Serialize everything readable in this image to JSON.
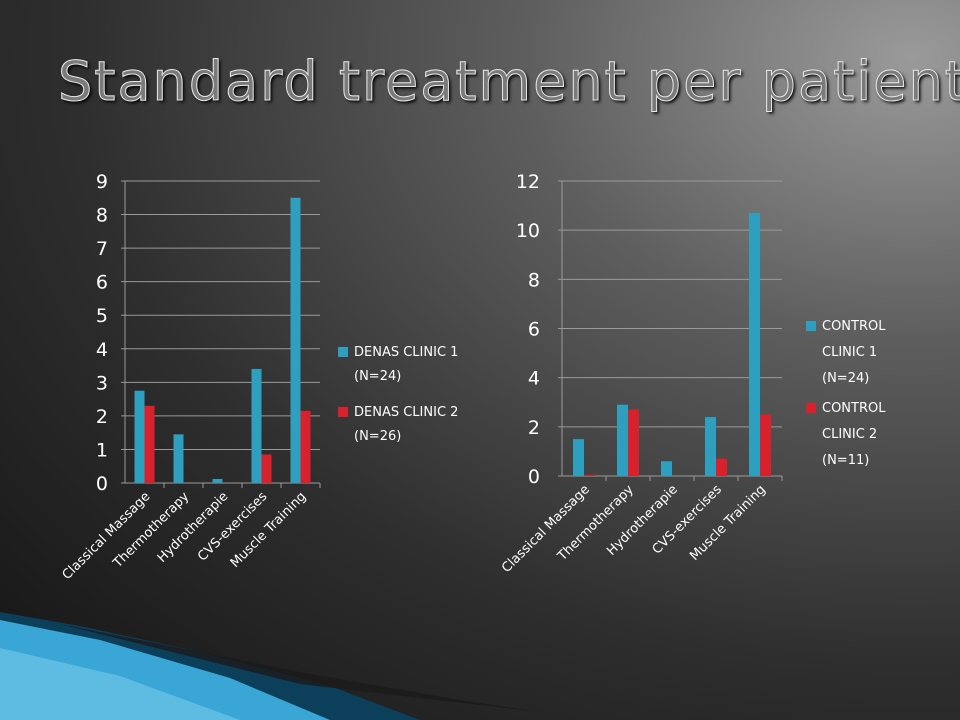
{
  "slide": {
    "title": "Standard treatment per patient"
  },
  "colors": {
    "series1": "#2e9fbf",
    "series2": "#d7222e",
    "gridline": "#9a9a9a"
  },
  "chart_data": [
    {
      "type": "bar",
      "categories": [
        "Classical Massage",
        "Thermotherapy",
        "Hydrotherapie",
        "CVS-exercises",
        "Muscle Training"
      ],
      "series": [
        {
          "name": "DENAS CLINIC 1 (N=24)",
          "values": [
            2.75,
            1.45,
            0.12,
            3.4,
            8.5
          ]
        },
        {
          "name": "DENAS CLINIC 2 (N=26)",
          "values": [
            2.3,
            0,
            0,
            0.85,
            2.15
          ]
        }
      ],
      "legend": {
        "lines1": [
          "DENAS CLINIC 1",
          "(N=24)"
        ],
        "lines2": [
          "DENAS CLINIC 2",
          "(N=26)"
        ]
      },
      "yticks": [
        "0",
        "1",
        "2",
        "3",
        "4",
        "5",
        "6",
        "7",
        "8",
        "9"
      ],
      "ylim": [
        0,
        9
      ],
      "grid": true,
      "legend_position": "right"
    },
    {
      "type": "bar",
      "categories": [
        "Classical Massage",
        "Thermotherapy",
        "Hydrotherapie",
        "CVS-exercises",
        "Muscle Training"
      ],
      "series": [
        {
          "name": "CONTROL CLINIC 1 (N=24)",
          "values": [
            1.5,
            2.9,
            0.6,
            2.4,
            10.7
          ]
        },
        {
          "name": "CONTROL CLINIC 2 (N=11)",
          "values": [
            0.05,
            2.7,
            0,
            0.7,
            2.5
          ]
        }
      ],
      "legend": {
        "lines1": [
          "CONTROL",
          "CLINIC 1",
          "(N=24)"
        ],
        "lines2": [
          "CONTROL",
          "CLINIC 2",
          "(N=11)"
        ]
      },
      "yticks": [
        "0",
        "2",
        "4",
        "6",
        "8",
        "10",
        "12"
      ],
      "ylim": [
        0,
        12
      ],
      "grid": true,
      "legend_position": "right"
    }
  ]
}
